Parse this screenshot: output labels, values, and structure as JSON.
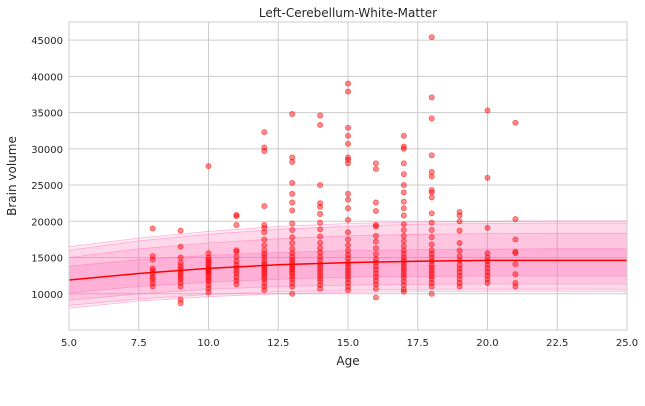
{
  "chart_data": {
    "type": "scatter",
    "title": "Left-Cerebellum-White-Matter",
    "xlabel": "Age",
    "ylabel": "Brain volume",
    "xlim": [
      5.0,
      25.0
    ],
    "ylim": [
      5000,
      47500
    ],
    "x_ticks": [
      "5.0",
      "7.5",
      "10.0",
      "12.5",
      "15.0",
      "17.5",
      "20.0",
      "22.5",
      "25.0"
    ],
    "x_tick_values": [
      5.0,
      7.5,
      10.0,
      12.5,
      15.0,
      17.5,
      20.0,
      22.5,
      25.0
    ],
    "y_ticks": [
      "10000",
      "15000",
      "20000",
      "25000",
      "30000",
      "35000",
      "40000",
      "45000"
    ],
    "y_tick_values": [
      10000,
      15000,
      20000,
      25000,
      30000,
      35000,
      40000,
      45000
    ],
    "grid": true,
    "colors": {
      "points": "#ff0000",
      "median_line": "#ff0000",
      "band": "#ff69b4",
      "grid": "#cccccc",
      "axes_bg": "#ffffff"
    },
    "median_curve": {
      "x": [
        5,
        7.5,
        10,
        12.5,
        15,
        17.5,
        20,
        22.5,
        25
      ],
      "y": [
        11900,
        12800,
        13500,
        14000,
        14300,
        14500,
        14600,
        14600,
        14600
      ]
    },
    "bands": [
      {
        "lower": [
          8000,
          9000,
          9600,
          10000,
          10200,
          10300,
          10350,
          10350,
          10300
        ],
        "upper": [
          16500,
          17700,
          18600,
          19300,
          19700,
          19900,
          20000,
          20050,
          20050
        ]
      },
      {
        "lower": [
          8400,
          9300,
          9900,
          10300,
          10500,
          10600,
          10650,
          10650,
          10600
        ],
        "upper": [
          16000,
          17300,
          18200,
          18900,
          19300,
          19600,
          19700,
          19750,
          19750
        ]
      },
      {
        "lower": [
          9100,
          10000,
          10600,
          11000,
          11200,
          11300,
          11350,
          11350,
          11350
        ],
        "upper": [
          15000,
          16200,
          17000,
          17600,
          18000,
          18200,
          18300,
          18350,
          18350
        ]
      },
      {
        "lower": [
          10100,
          11000,
          11600,
          12000,
          12300,
          12400,
          12450,
          12450,
          12450
        ],
        "upper": [
          13800,
          14700,
          15300,
          15700,
          15950,
          16100,
          16150,
          16200,
          16200
        ]
      }
    ],
    "points": [
      [
        8,
        11000
      ],
      [
        8,
        11500
      ],
      [
        8,
        12000
      ],
      [
        8,
        12300
      ],
      [
        8,
        12800
      ],
      [
        8,
        13200
      ],
      [
        8,
        13500
      ],
      [
        8,
        14700
      ],
      [
        8,
        15200
      ],
      [
        8,
        19000
      ],
      [
        9,
        8700
      ],
      [
        9,
        9200
      ],
      [
        9,
        11000
      ],
      [
        9,
        11500
      ],
      [
        9,
        12000
      ],
      [
        9,
        12300
      ],
      [
        9,
        12700
      ],
      [
        9,
        13000
      ],
      [
        9,
        13400
      ],
      [
        9,
        13800
      ],
      [
        9,
        14300
      ],
      [
        9,
        15000
      ],
      [
        9,
        16500
      ],
      [
        9,
        18700
      ],
      [
        10,
        10200
      ],
      [
        10,
        10700
      ],
      [
        10,
        11200
      ],
      [
        10,
        11700
      ],
      [
        10,
        12000
      ],
      [
        10,
        12300
      ],
      [
        10,
        12600
      ],
      [
        10,
        12900
      ],
      [
        10,
        13100
      ],
      [
        10,
        13300
      ],
      [
        10,
        13500
      ],
      [
        10,
        13800
      ],
      [
        10,
        14100
      ],
      [
        10,
        14400
      ],
      [
        10,
        14700
      ],
      [
        10,
        15000
      ],
      [
        10,
        15600
      ],
      [
        10,
        27600
      ],
      [
        11,
        11300
      ],
      [
        11,
        11800
      ],
      [
        11,
        12300
      ],
      [
        11,
        12800
      ],
      [
        11,
        13200
      ],
      [
        11,
        13600
      ],
      [
        11,
        14000
      ],
      [
        11,
        14500
      ],
      [
        11,
        15100
      ],
      [
        11,
        15800
      ],
      [
        11,
        16000
      ],
      [
        11,
        19500
      ],
      [
        11,
        20700
      ],
      [
        11,
        20900
      ],
      [
        12,
        10500
      ],
      [
        12,
        11000
      ],
      [
        12,
        11500
      ],
      [
        12,
        12000
      ],
      [
        12,
        12300
      ],
      [
        12,
        12700
      ],
      [
        12,
        13000
      ],
      [
        12,
        13300
      ],
      [
        12,
        13600
      ],
      [
        12,
        13900
      ],
      [
        12,
        14200
      ],
      [
        12,
        14600
      ],
      [
        12,
        15100
      ],
      [
        12,
        15500
      ],
      [
        12,
        16000
      ],
      [
        12,
        16700
      ],
      [
        12,
        17500
      ],
      [
        12,
        18500
      ],
      [
        12,
        19100
      ],
      [
        12,
        19500
      ],
      [
        12,
        22100
      ],
      [
        12,
        29700
      ],
      [
        12,
        30200
      ],
      [
        12,
        32300
      ],
      [
        13,
        10000
      ],
      [
        13,
        11000
      ],
      [
        13,
        11500
      ],
      [
        13,
        12000
      ],
      [
        13,
        12400
      ],
      [
        13,
        12800
      ],
      [
        13,
        13100
      ],
      [
        13,
        13400
      ],
      [
        13,
        13700
      ],
      [
        13,
        14000
      ],
      [
        13,
        14300
      ],
      [
        13,
        14700
      ],
      [
        13,
        15100
      ],
      [
        13,
        15600
      ],
      [
        13,
        16200
      ],
      [
        13,
        17000
      ],
      [
        13,
        17800
      ],
      [
        13,
        18800
      ],
      [
        13,
        19700
      ],
      [
        13,
        21500
      ],
      [
        13,
        22600
      ],
      [
        13,
        23800
      ],
      [
        13,
        25300
      ],
      [
        13,
        28200
      ],
      [
        13,
        28800
      ],
      [
        13,
        34800
      ],
      [
        14,
        10700
      ],
      [
        14,
        11200
      ],
      [
        14,
        11700
      ],
      [
        14,
        12100
      ],
      [
        14,
        12500
      ],
      [
        14,
        12900
      ],
      [
        14,
        13300
      ],
      [
        14,
        13700
      ],
      [
        14,
        14100
      ],
      [
        14,
        14600
      ],
      [
        14,
        15100
      ],
      [
        14,
        15700
      ],
      [
        14,
        16300
      ],
      [
        14,
        17000
      ],
      [
        14,
        17900
      ],
      [
        14,
        18900
      ],
      [
        14,
        19800
      ],
      [
        14,
        21000
      ],
      [
        14,
        22000
      ],
      [
        14,
        22500
      ],
      [
        14,
        25000
      ],
      [
        14,
        33300
      ],
      [
        14,
        34600
      ],
      [
        15,
        10500
      ],
      [
        15,
        11000
      ],
      [
        15,
        11500
      ],
      [
        15,
        12000
      ],
      [
        15,
        12400
      ],
      [
        15,
        12800
      ],
      [
        15,
        13200
      ],
      [
        15,
        13600
      ],
      [
        15,
        14000
      ],
      [
        15,
        14400
      ],
      [
        15,
        14900
      ],
      [
        15,
        15400
      ],
      [
        15,
        16000
      ],
      [
        15,
        16700
      ],
      [
        15,
        17500
      ],
      [
        15,
        18500
      ],
      [
        15,
        20200
      ],
      [
        15,
        21800
      ],
      [
        15,
        23000
      ],
      [
        15,
        23800
      ],
      [
        15,
        28000
      ],
      [
        15,
        28500
      ],
      [
        15,
        28800
      ],
      [
        15,
        30700
      ],
      [
        15,
        31800
      ],
      [
        15,
        32900
      ],
      [
        15,
        37900
      ],
      [
        15,
        39000
      ],
      [
        16,
        9500
      ],
      [
        16,
        10700
      ],
      [
        16,
        11300
      ],
      [
        16,
        11800
      ],
      [
        16,
        12300
      ],
      [
        16,
        12800
      ],
      [
        16,
        13300
      ],
      [
        16,
        13800
      ],
      [
        16,
        14300
      ],
      [
        16,
        14800
      ],
      [
        16,
        15500
      ],
      [
        16,
        16300
      ],
      [
        16,
        17200
      ],
      [
        16,
        18000
      ],
      [
        16,
        19300
      ],
      [
        16,
        19500
      ],
      [
        16,
        21400
      ],
      [
        16,
        22600
      ],
      [
        16,
        27200
      ],
      [
        16,
        28000
      ],
      [
        17,
        10300
      ],
      [
        17,
        10600
      ],
      [
        17,
        11200
      ],
      [
        17,
        11700
      ],
      [
        17,
        12200
      ],
      [
        17,
        12600
      ],
      [
        17,
        13000
      ],
      [
        17,
        13400
      ],
      [
        17,
        13800
      ],
      [
        17,
        14200
      ],
      [
        17,
        14600
      ],
      [
        17,
        15000
      ],
      [
        17,
        15500
      ],
      [
        17,
        16000
      ],
      [
        17,
        16600
      ],
      [
        17,
        17300
      ],
      [
        17,
        18000
      ],
      [
        17,
        18800
      ],
      [
        17,
        19600
      ],
      [
        17,
        20800
      ],
      [
        17,
        21800
      ],
      [
        17,
        22700
      ],
      [
        17,
        24000
      ],
      [
        17,
        25000
      ],
      [
        17,
        26500
      ],
      [
        17,
        28000
      ],
      [
        17,
        30000
      ],
      [
        17,
        30300
      ],
      [
        17,
        31800
      ],
      [
        18,
        10000
      ],
      [
        18,
        11000
      ],
      [
        18,
        11500
      ],
      [
        18,
        12000
      ],
      [
        18,
        12400
      ],
      [
        18,
        12800
      ],
      [
        18,
        13200
      ],
      [
        18,
        13600
      ],
      [
        18,
        14000
      ],
      [
        18,
        14500
      ],
      [
        18,
        15000
      ],
      [
        18,
        15500
      ],
      [
        18,
        16000
      ],
      [
        18,
        16800
      ],
      [
        18,
        17800
      ],
      [
        18,
        18800
      ],
      [
        18,
        19800
      ],
      [
        18,
        21100
      ],
      [
        18,
        23300
      ],
      [
        18,
        24000
      ],
      [
        18,
        24300
      ],
      [
        18,
        26200
      ],
      [
        18,
        26800
      ],
      [
        18,
        29100
      ],
      [
        18,
        34200
      ],
      [
        18,
        37100
      ],
      [
        18,
        45400
      ],
      [
        19,
        11000
      ],
      [
        19,
        11500
      ],
      [
        19,
        12000
      ],
      [
        19,
        12500
      ],
      [
        19,
        13000
      ],
      [
        19,
        13500
      ],
      [
        19,
        14000
      ],
      [
        19,
        14600
      ],
      [
        19,
        15200
      ],
      [
        19,
        16000
      ],
      [
        19,
        17000
      ],
      [
        19,
        18700
      ],
      [
        19,
        20000
      ],
      [
        19,
        20800
      ],
      [
        19,
        21300
      ],
      [
        20,
        11500
      ],
      [
        20,
        12000
      ],
      [
        20,
        12500
      ],
      [
        20,
        13000
      ],
      [
        20,
        13500
      ],
      [
        20,
        14000
      ],
      [
        20,
        14500
      ],
      [
        20,
        15000
      ],
      [
        20,
        15600
      ],
      [
        20,
        19100
      ],
      [
        20,
        26000
      ],
      [
        20,
        35300
      ],
      [
        21,
        11000
      ],
      [
        21,
        11500
      ],
      [
        21,
        12700
      ],
      [
        21,
        14100
      ],
      [
        21,
        15600
      ],
      [
        21,
        15800
      ],
      [
        21,
        17500
      ],
      [
        21,
        20300
      ],
      [
        21,
        33600
      ]
    ]
  }
}
